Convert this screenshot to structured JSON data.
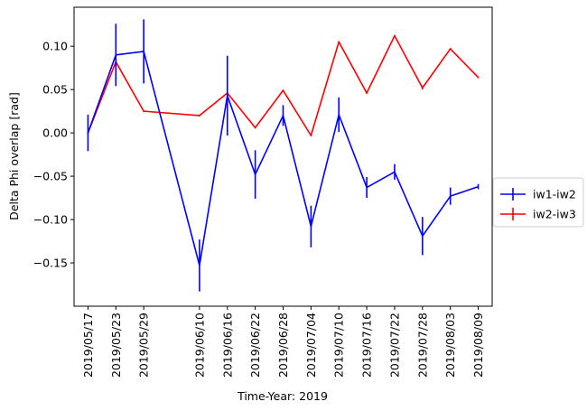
{
  "chart_data": {
    "type": "line",
    "title": "",
    "xlabel": "Time-Year: 2019",
    "ylabel": "Delta Phi overlap [rad]",
    "x_type": "date",
    "xlim": [
      "2019-05-14",
      "2019-08-12"
    ],
    "ylim": [
      -0.2,
      0.145
    ],
    "x_ticks": [
      "2019-05-17",
      "2019-05-23",
      "2019-05-29",
      "2019-06-10",
      "2019-06-16",
      "2019-06-22",
      "2019-06-28",
      "2019-07-04",
      "2019-07-10",
      "2019-07-16",
      "2019-07-22",
      "2019-07-28",
      "2019-08-03",
      "2019-08-09"
    ],
    "x_tick_labels": [
      "2019/05/17",
      "2019/05/23",
      "2019/05/29",
      "2019/06/10",
      "2019/06/16",
      "2019/06/22",
      "2019/06/28",
      "2019/07/04",
      "2019/07/10",
      "2019/07/16",
      "2019/07/22",
      "2019/07/28",
      "2019/08/03",
      "2019/08/09"
    ],
    "y_ticks": [
      -0.15,
      -0.1,
      -0.05,
      0.0,
      0.05,
      0.1
    ],
    "y_tick_labels": [
      "−0.15",
      "−0.10",
      "−0.05",
      "0.00",
      "0.05",
      "0.10"
    ],
    "grid": false,
    "legend_position": "outside-right",
    "series": [
      {
        "name": "iw1-iw2",
        "color": "#0000ff",
        "x": [
          "2019-05-17",
          "2019-05-23",
          "2019-05-29",
          "2019-06-10",
          "2019-06-16",
          "2019-06-22",
          "2019-06-28",
          "2019-07-04",
          "2019-07-10",
          "2019-07-16",
          "2019-07-22",
          "2019-07-28",
          "2019-08-03",
          "2019-08-09"
        ],
        "y": [
          0.0,
          0.09,
          0.094,
          -0.153,
          0.043,
          -0.048,
          0.02,
          -0.108,
          0.021,
          -0.063,
          -0.045,
          -0.119,
          -0.073,
          -0.062
        ],
        "yerr": [
          0.021,
          0.036,
          0.037,
          0.03,
          0.046,
          0.028,
          0.012,
          0.024,
          0.02,
          0.012,
          0.009,
          0.022,
          0.01,
          0.003
        ]
      },
      {
        "name": "iw2-iw3",
        "color": "#ff0000",
        "x": [
          "2019-05-17",
          "2019-05-23",
          "2019-05-29",
          "2019-06-10",
          "2019-06-16",
          "2019-06-22",
          "2019-06-28",
          "2019-07-04",
          "2019-07-10",
          "2019-07-16",
          "2019-07-22",
          "2019-07-28",
          "2019-08-03",
          "2019-08-09"
        ],
        "y": [
          0.0,
          0.082,
          0.025,
          0.02,
          0.046,
          0.006,
          0.049,
          -0.003,
          0.105,
          0.046,
          0.112,
          0.052,
          0.097,
          0.064
        ],
        "yerr": [
          0.001,
          0.002,
          0.001,
          0.001,
          0.002,
          0.001,
          0.001,
          0.001,
          0.001,
          0.001,
          0.001,
          0.002,
          0.001,
          0.001
        ]
      }
    ]
  }
}
